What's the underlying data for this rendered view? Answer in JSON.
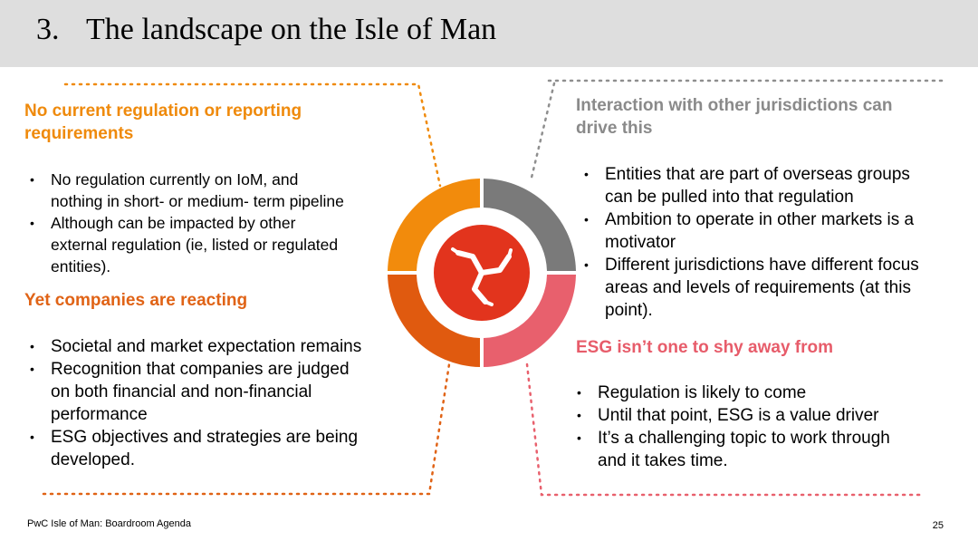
{
  "header": {
    "number": "3.",
    "title": "The landscape on the Isle of Man"
  },
  "top_left": {
    "heading": "No current regulation or reporting requirements",
    "heading_lines": [
      "No current regulation or reporting",
      "requirements"
    ],
    "bullets": [
      [
        "No regulation currently on IoM, and",
        "nothing in short- or medium- term pipeline"
      ],
      [
        "Although can be impacted by other",
        "external regulation (ie, listed or regulated",
        "entities)."
      ]
    ]
  },
  "bottom_left": {
    "heading": "Yet companies are reacting",
    "bullets": [
      [
        "Societal and market expectation remains"
      ],
      [
        "Recognition that companies are judged",
        "on both financial and non-financial",
        "performance"
      ],
      [
        "ESG objectives and strategies are being",
        "developed."
      ]
    ]
  },
  "top_right": {
    "heading_lines": [
      "Interaction with other jurisdictions can",
      "drive this"
    ],
    "bullets": [
      [
        "Entities that are part of overseas groups",
        "can be pulled into that regulation"
      ],
      [
        "Ambition to operate in other markets is a",
        "motivator"
      ],
      [
        "Different jurisdictions have different focus",
        "areas and levels of requirements (at this",
        "point)."
      ]
    ]
  },
  "bottom_right": {
    "heading": "ESG isn’t one to shy away from",
    "bullets": [
      [
        "Regulation is likely to come"
      ],
      [
        "Until that point, ESG is a value driver"
      ],
      [
        "It’s a challenging topic to work through",
        "and it takes time."
      ]
    ]
  },
  "center_graphic": {
    "icon": "triskelion-icon",
    "segment_colors": {
      "top_left": "#f28b0c",
      "top_right": "#7a7a7a",
      "bottom_left": "#e05a0f",
      "bottom_right": "#e8606d"
    },
    "center_color": "#e2341d"
  },
  "footer": {
    "source": "PwC Isle of Man: Boardroom Agenda",
    "page": "25"
  }
}
